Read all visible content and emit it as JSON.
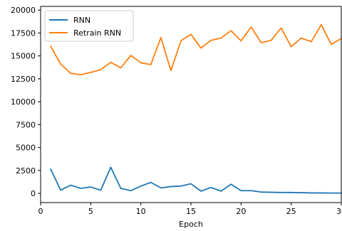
{
  "chart_data": {
    "type": "line",
    "title": "",
    "xlabel": "Epoch",
    "ylabel": "",
    "xlim": [
      0,
      30
    ],
    "ylim": [
      -1000,
      20400
    ],
    "grid": false,
    "legend_position": "upper-left",
    "x_ticks": [
      0,
      5,
      10,
      15,
      20,
      25,
      30
    ],
    "y_ticks": [
      0,
      2500,
      5000,
      7500,
      10000,
      12500,
      15000,
      17500,
      20000
    ],
    "x": [
      1,
      2,
      3,
      4,
      5,
      6,
      7,
      8,
      9,
      10,
      11,
      12,
      13,
      14,
      15,
      16,
      17,
      18,
      19,
      20,
      21,
      22,
      23,
      24,
      25,
      26,
      27,
      28,
      29,
      30
    ],
    "series": [
      {
        "name": "RNN",
        "color": "#1f77b4",
        "values": [
          2650,
          350,
          900,
          550,
          700,
          350,
          2850,
          550,
          300,
          800,
          1200,
          600,
          750,
          800,
          1050,
          250,
          650,
          250,
          1000,
          300,
          300,
          150,
          120,
          100,
          100,
          80,
          50,
          50,
          40,
          40
        ]
      },
      {
        "name": "Retrain RNN",
        "color": "#ff7f0e",
        "values": [
          16050,
          14100,
          13100,
          12950,
          13200,
          13500,
          14300,
          13700,
          15050,
          14250,
          14050,
          17000,
          13400,
          16650,
          17350,
          15850,
          16700,
          16950,
          17750,
          16650,
          18150,
          16450,
          16700,
          18050,
          16000,
          16950,
          16550,
          18400,
          16250,
          16900
        ]
      }
    ]
  }
}
